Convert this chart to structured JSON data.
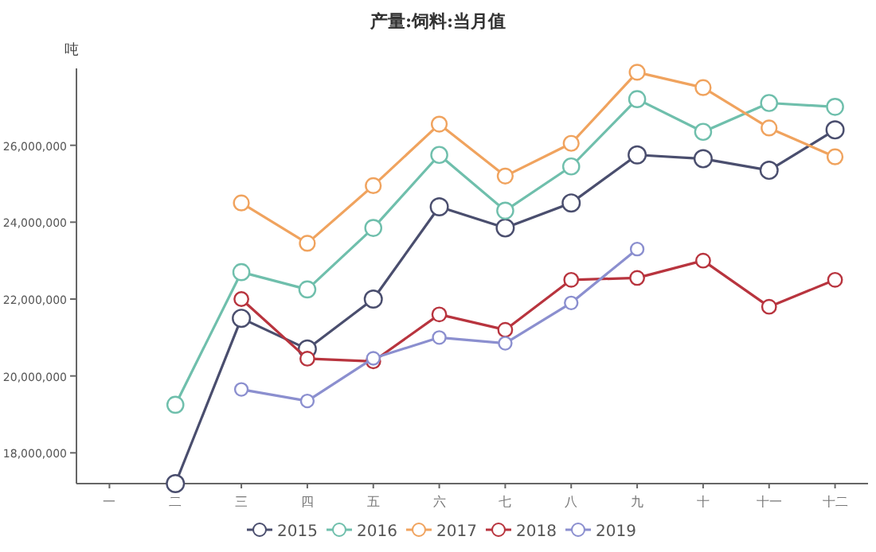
{
  "chart_data": {
    "type": "line",
    "title": "产量:饲料:当月值",
    "ylabel": "吨",
    "categories": [
      "一",
      "二",
      "三",
      "四",
      "五",
      "六",
      "七",
      "八",
      "九",
      "十",
      "十一",
      "十二"
    ],
    "series": [
      {
        "name": "2015",
        "color": "#4a4e6e",
        "values": [
          null,
          17200000,
          21500000,
          20700000,
          22000000,
          24400000,
          23850000,
          24500000,
          25750000,
          25650000,
          25350000,
          26400000
        ]
      },
      {
        "name": "2016",
        "color": "#6fbfac",
        "values": [
          null,
          19250000,
          22700000,
          22250000,
          23850000,
          25750000,
          24300000,
          25450000,
          27200000,
          26350000,
          27100000,
          27000000
        ]
      },
      {
        "name": "2017",
        "color": "#f0a35e",
        "values": [
          null,
          null,
          24500000,
          23450000,
          24950000,
          26550000,
          25200000,
          26050000,
          27900000,
          27500000,
          26450000,
          25700000
        ]
      },
      {
        "name": "2018",
        "color": "#b8343e",
        "values": [
          null,
          null,
          22000000,
          20450000,
          20380000,
          21600000,
          21200000,
          22500000,
          22550000,
          23000000,
          21800000,
          22500000
        ]
      },
      {
        "name": "2019",
        "color": "#8b8fcf",
        "values": [
          null,
          null,
          19650000,
          19350000,
          20460000,
          21000000,
          20850000,
          21900000,
          23300000,
          null,
          null,
          null
        ]
      }
    ],
    "ylim": [
      17200000,
      28000000
    ],
    "yticks": [
      {
        "value": 18000000,
        "label": "18,000,000"
      },
      {
        "value": 20000000,
        "label": "20,000,000"
      },
      {
        "value": 22000000,
        "label": "22,000,000"
      },
      {
        "value": 24000000,
        "label": "24,000,000"
      },
      {
        "value": 26000000,
        "label": "26,000,000"
      }
    ],
    "legend": "bottom",
    "marker": "circle",
    "line_style": "solid"
  }
}
